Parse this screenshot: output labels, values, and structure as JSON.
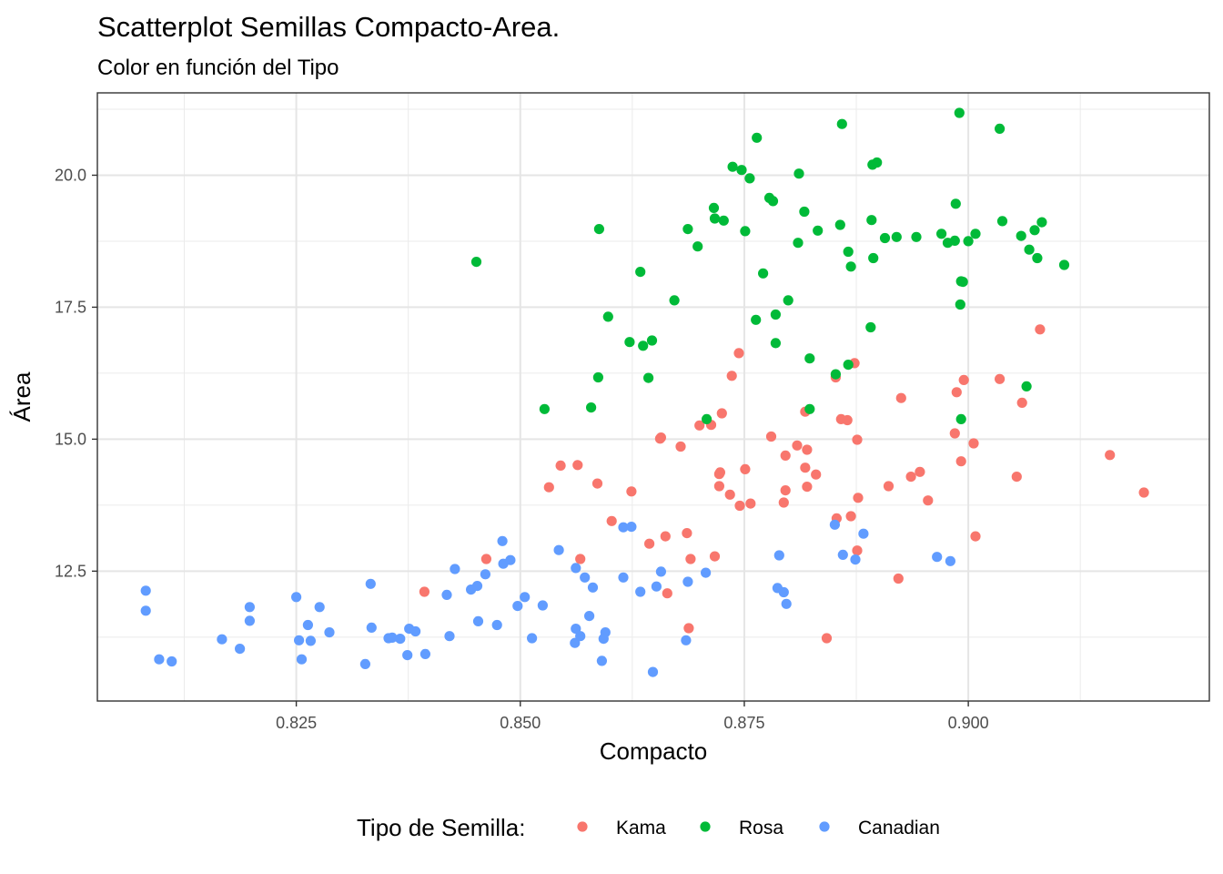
{
  "chart_data": {
    "type": "scatter",
    "title": "Scatterplot Semillas Compacto-Area.",
    "subtitle": "Color en función del Tipo",
    "xlabel": "Compacto",
    "ylabel": "Área",
    "xlim": [
      0.8028,
      0.9269
    ],
    "ylim": [
      10.04,
      21.56
    ],
    "x_ticks": [
      0.825,
      0.85,
      0.875,
      0.9
    ],
    "x_tick_labels": [
      "0.825",
      "0.850",
      "0.875",
      "0.900"
    ],
    "y_ticks": [
      12.5,
      15.0,
      17.5,
      20.0
    ],
    "y_tick_labels": [
      "12.5",
      "15.0",
      "17.5",
      "20.0"
    ],
    "grid": true,
    "legend": {
      "title": "Tipo de Semilla:",
      "position": "bottom"
    },
    "series": [
      {
        "name": "Kama",
        "color": "#F8766D",
        "points": [
          [
            0.908,
            17.08
          ],
          [
            0.8995,
            16.12
          ],
          [
            0.8987,
            15.89
          ],
          [
            0.8873,
            16.44
          ],
          [
            0.8744,
            16.63
          ],
          [
            0.8736,
            16.2
          ],
          [
            0.9035,
            16.14
          ],
          [
            0.906,
            15.69
          ],
          [
            0.8925,
            15.78
          ],
          [
            0.8852,
            16.17
          ],
          [
            0.8818,
            15.52
          ],
          [
            0.8725,
            15.49
          ],
          [
            0.87,
            15.26
          ],
          [
            0.8713,
            15.27
          ],
          [
            0.8858,
            15.38
          ],
          [
            0.8865,
            15.36
          ],
          [
            0.8657,
            15.03
          ],
          [
            0.8656,
            15.01
          ],
          [
            0.8679,
            14.86
          ],
          [
            0.878,
            15.05
          ],
          [
            0.8876,
            14.99
          ],
          [
            0.8985,
            15.11
          ],
          [
            0.9006,
            14.92
          ],
          [
            0.8992,
            14.58
          ],
          [
            0.9158,
            14.7
          ],
          [
            0.9196,
            13.99
          ],
          [
            0.8809,
            14.88
          ],
          [
            0.882,
            14.8
          ],
          [
            0.8796,
            14.69
          ],
          [
            0.8818,
            14.46
          ],
          [
            0.883,
            14.33
          ],
          [
            0.8751,
            14.43
          ],
          [
            0.8722,
            14.34
          ],
          [
            0.8723,
            14.37
          ],
          [
            0.8545,
            14.5
          ],
          [
            0.8564,
            14.51
          ],
          [
            0.8532,
            14.09
          ],
          [
            0.8586,
            14.16
          ],
          [
            0.8624,
            14.01
          ],
          [
            0.8734,
            13.95
          ],
          [
            0.8722,
            14.11
          ],
          [
            0.882,
            14.1
          ],
          [
            0.8796,
            14.03
          ],
          [
            0.8911,
            14.11
          ],
          [
            0.8946,
            14.38
          ],
          [
            0.8936,
            14.29
          ],
          [
            0.9054,
            14.29
          ],
          [
            0.8955,
            13.84
          ],
          [
            0.8877,
            13.89
          ],
          [
            0.8757,
            13.78
          ],
          [
            0.8794,
            13.8
          ],
          [
            0.8745,
            13.74
          ],
          [
            0.8602,
            13.45
          ],
          [
            0.8853,
            13.5
          ],
          [
            0.8869,
            13.54
          ],
          [
            0.8686,
            13.22
          ],
          [
            0.8662,
            13.16
          ],
          [
            0.8644,
            13.02
          ],
          [
            0.9008,
            13.16
          ],
          [
            0.8876,
            12.89
          ],
          [
            0.8717,
            12.78
          ],
          [
            0.869,
            12.73
          ],
          [
            0.8462,
            12.73
          ],
          [
            0.8567,
            12.73
          ],
          [
            0.8664,
            12.08
          ],
          [
            0.8393,
            12.11
          ],
          [
            0.8922,
            12.36
          ],
          [
            0.8688,
            11.42
          ],
          [
            0.8842,
            11.23
          ]
        ]
      },
      {
        "name": "Rosa",
        "color": "#00BA38",
        "points": [
          [
            0.899,
            21.18
          ],
          [
            0.9035,
            20.88
          ],
          [
            0.8859,
            20.97
          ],
          [
            0.8764,
            20.71
          ],
          [
            0.8737,
            20.16
          ],
          [
            0.8747,
            20.1
          ],
          [
            0.8756,
            19.94
          ],
          [
            0.8811,
            20.03
          ],
          [
            0.8898,
            20.24
          ],
          [
            0.8893,
            20.2
          ],
          [
            0.8778,
            19.57
          ],
          [
            0.8782,
            19.51
          ],
          [
            0.8817,
            19.31
          ],
          [
            0.8716,
            19.38
          ],
          [
            0.8717,
            19.18
          ],
          [
            0.8727,
            19.14
          ],
          [
            0.8892,
            19.15
          ],
          [
            0.8986,
            19.46
          ],
          [
            0.9038,
            19.13
          ],
          [
            0.9082,
            19.11
          ],
          [
            0.8857,
            19.06
          ],
          [
            0.8588,
            18.98
          ],
          [
            0.8687,
            18.98
          ],
          [
            0.8751,
            18.94
          ],
          [
            0.8832,
            18.95
          ],
          [
            0.8907,
            18.81
          ],
          [
            0.892,
            18.83
          ],
          [
            0.8942,
            18.83
          ],
          [
            0.897,
            18.89
          ],
          [
            0.8985,
            18.76
          ],
          [
            0.8977,
            18.72
          ],
          [
            0.9,
            18.75
          ],
          [
            0.9008,
            18.89
          ],
          [
            0.9059,
            18.85
          ],
          [
            0.9074,
            18.96
          ],
          [
            0.9068,
            18.59
          ],
          [
            0.9077,
            18.43
          ],
          [
            0.9107,
            18.3
          ],
          [
            0.881,
            18.72
          ],
          [
            0.8866,
            18.55
          ],
          [
            0.8869,
            18.27
          ],
          [
            0.8894,
            18.43
          ],
          [
            0.8698,
            18.65
          ],
          [
            0.8634,
            18.17
          ],
          [
            0.8771,
            18.14
          ],
          [
            0.8992,
            17.99
          ],
          [
            0.8994,
            17.98
          ],
          [
            0.8991,
            17.55
          ],
          [
            0.8451,
            18.36
          ],
          [
            0.8672,
            17.63
          ],
          [
            0.8799,
            17.63
          ],
          [
            0.8785,
            17.36
          ],
          [
            0.8763,
            17.26
          ],
          [
            0.8598,
            17.32
          ],
          [
            0.8891,
            17.12
          ],
          [
            0.8622,
            16.84
          ],
          [
            0.8647,
            16.87
          ],
          [
            0.8637,
            16.77
          ],
          [
            0.8785,
            16.82
          ],
          [
            0.8823,
            16.53
          ],
          [
            0.8866,
            16.41
          ],
          [
            0.8852,
            16.23
          ],
          [
            0.8587,
            16.17
          ],
          [
            0.8643,
            16.16
          ],
          [
            0.9065,
            16.0
          ],
          [
            0.8992,
            15.38
          ],
          [
            0.8527,
            15.57
          ],
          [
            0.8579,
            15.6
          ],
          [
            0.8708,
            15.38
          ],
          [
            0.8823,
            15.57
          ]
        ]
      },
      {
        "name": "Canadian",
        "color": "#619CFF",
        "points": [
          [
            0.8082,
            12.13
          ],
          [
            0.8082,
            11.75
          ],
          [
            0.8097,
            10.83
          ],
          [
            0.8111,
            10.79
          ],
          [
            0.8167,
            11.21
          ],
          [
            0.8187,
            11.03
          ],
          [
            0.8198,
            11.82
          ],
          [
            0.8198,
            11.56
          ],
          [
            0.825,
            12.01
          ],
          [
            0.8253,
            11.19
          ],
          [
            0.8256,
            10.83
          ],
          [
            0.8263,
            11.48
          ],
          [
            0.8266,
            11.18
          ],
          [
            0.8276,
            11.82
          ],
          [
            0.8287,
            11.34
          ],
          [
            0.8327,
            10.74
          ],
          [
            0.8333,
            12.26
          ],
          [
            0.8334,
            11.43
          ],
          [
            0.8353,
            11.23
          ],
          [
            0.8357,
            11.24
          ],
          [
            0.8366,
            11.22
          ],
          [
            0.8374,
            10.91
          ],
          [
            0.8376,
            11.41
          ],
          [
            0.8383,
            11.36
          ],
          [
            0.8394,
            10.93
          ],
          [
            0.8418,
            12.05
          ],
          [
            0.8421,
            11.27
          ],
          [
            0.8427,
            12.54
          ],
          [
            0.8445,
            12.15
          ],
          [
            0.8452,
            12.22
          ],
          [
            0.8453,
            11.55
          ],
          [
            0.8461,
            12.44
          ],
          [
            0.8474,
            11.48
          ],
          [
            0.848,
            13.07
          ],
          [
            0.8481,
            12.64
          ],
          [
            0.8489,
            12.71
          ],
          [
            0.8497,
            11.84
          ],
          [
            0.8505,
            12.01
          ],
          [
            0.8513,
            11.23
          ],
          [
            0.8525,
            11.85
          ],
          [
            0.8543,
            12.9
          ],
          [
            0.8562,
            12.56
          ],
          [
            0.8562,
            11.41
          ],
          [
            0.8561,
            11.14
          ],
          [
            0.8567,
            11.27
          ],
          [
            0.8572,
            12.38
          ],
          [
            0.8577,
            11.65
          ],
          [
            0.8581,
            12.19
          ],
          [
            0.8591,
            10.8
          ],
          [
            0.8595,
            11.34
          ],
          [
            0.8593,
            11.22
          ],
          [
            0.8615,
            12.38
          ],
          [
            0.8615,
            13.33
          ],
          [
            0.8624,
            13.34
          ],
          [
            0.8634,
            12.11
          ],
          [
            0.8648,
            10.59
          ],
          [
            0.8652,
            12.21
          ],
          [
            0.8657,
            12.49
          ],
          [
            0.8687,
            12.3
          ],
          [
            0.8685,
            11.19
          ],
          [
            0.8707,
            12.47
          ],
          [
            0.8787,
            12.18
          ],
          [
            0.8789,
            12.8
          ],
          [
            0.8794,
            12.1
          ],
          [
            0.8797,
            11.88
          ],
          [
            0.8851,
            13.38
          ],
          [
            0.886,
            12.81
          ],
          [
            0.8874,
            12.72
          ],
          [
            0.8883,
            13.21
          ],
          [
            0.8965,
            12.77
          ],
          [
            0.898,
            12.69
          ]
        ]
      }
    ]
  }
}
